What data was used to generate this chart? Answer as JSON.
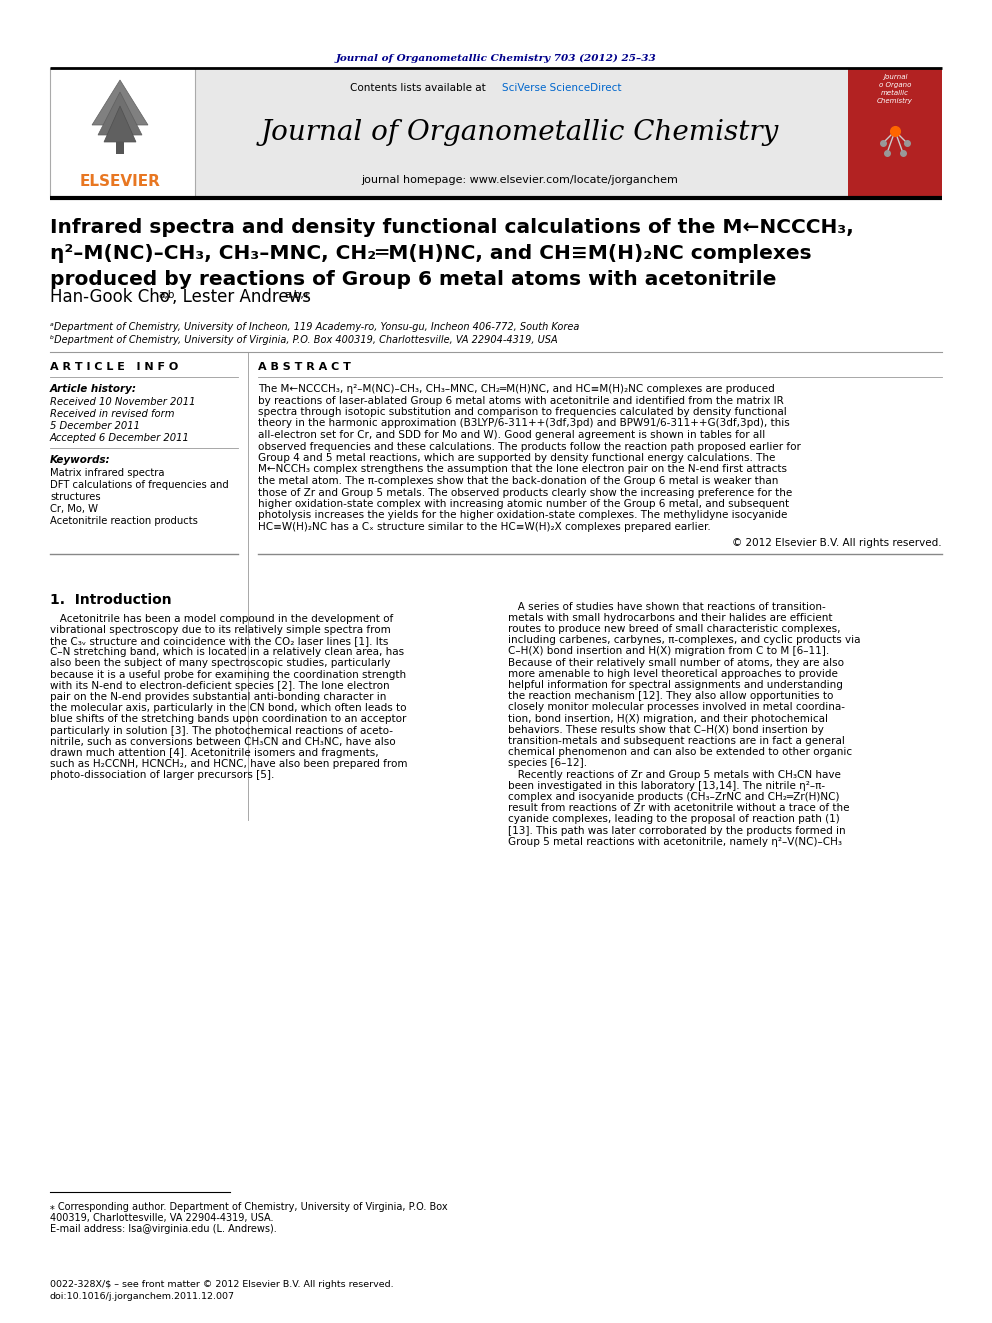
{
  "journal_line": "Journal of Organometallic Chemistry 703 (2012) 25–33",
  "contents_line": "Contents lists available at ",
  "sciverse_text": "SciVerse ScienceDirect",
  "journal_title": "Journal of Organometallic Chemistry",
  "homepage_line": "journal homepage: www.elsevier.com/locate/jorganchem",
  "elsevier_text": "ELSEVIER",
  "paper_title_line1": "Infrared spectra and density functional calculations of the M←NCCCH₃,",
  "paper_title_line2": "η²–M(NC)–CH₃, CH₃–MNC, CH₂═M(H)NC, and CH≡M(H)₂NC complexes",
  "paper_title_line3": "produced by reactions of Group 6 metal atoms with acetonitrile",
  "author_text": "Han-Gook Cho",
  "author_super1": "a,b",
  "author_text2": ", Lester Andrews",
  "author_super2": "a,b,⁎",
  "affil_a": "ᵃDepartment of Chemistry, University of Incheon, 119 Academy-ro, Yonsu-gu, Incheon 406-772, South Korea",
  "affil_b": "ᵇDepartment of Chemistry, University of Virginia, P.O. Box 400319, Charlottesville, VA 22904-4319, USA",
  "article_info_header": "ARTICLE INFO",
  "article_history_header": "Article history:",
  "received": "Received 10 November 2011",
  "revised": "Received in revised form",
  "revised2": "5 December 2011",
  "accepted": "Accepted 6 December 2011",
  "keywords_header": "Keywords:",
  "kw1": "Matrix infrared spectra",
  "kw2": "DFT calculations of frequencies and",
  "kw3": "structures",
  "kw4": "Cr, Mo, W",
  "kw5": "Acetonitrile reaction products",
  "abstract_header": "ABSTRACT",
  "abstract_lines": [
    "The M←NCCCH₃, η²–M(NC)–CH₃, CH₃–MNC, CH₂═M(H)NC, and HC≡M(H)₂NC complexes are produced",
    "by reactions of laser-ablated Group 6 metal atoms with acetonitrile and identified from the matrix IR",
    "spectra through isotopic substitution and comparison to frequencies calculated by density functional",
    "theory in the harmonic approximation (B3LYP/6-311++(3df,3pd) and BPW91/6-311++G(3df,3pd), this",
    "all-electron set for Cr, and SDD for Mo and W). Good general agreement is shown in tables for all",
    "observed frequencies and these calculations. The products follow the reaction path proposed earlier for",
    "Group 4 and 5 metal reactions, which are supported by density functional energy calculations. The",
    "M←NCCH₃ complex strengthens the assumption that the lone electron pair on the N-end first attracts",
    "the metal atom. The π-complexes show that the back-donation of the Group 6 metal is weaker than",
    "those of Zr and Group 5 metals. The observed products clearly show the increasing preference for the",
    "higher oxidation-state complex with increasing atomic number of the Group 6 metal, and subsequent",
    "photolysis increases the yields for the higher oxidation-state complexes. The methylidyne isocyanide",
    "HC≡W(H)₂NC has a Cₓ structure similar to the HC≡W(H)₂X complexes prepared earlier."
  ],
  "copyright": "© 2012 Elsevier B.V. All rights reserved.",
  "intro_header": "1.  Introduction",
  "intro_col1_lines": [
    "   Acetonitrile has been a model compound in the development of",
    "vibrational spectroscopy due to its relatively simple spectra from",
    "the C₃ᵥ structure and coincidence with the CO₂ laser lines [1]. Its",
    "C–N stretching band, which is located in a relatively clean area, has",
    "also been the subject of many spectroscopic studies, particularly",
    "because it is a useful probe for examining the coordination strength",
    "with its N-end to electron-deficient species [2]. The lone electron",
    "pair on the N-end provides substantial anti-bonding character in",
    "the molecular axis, particularly in the CN bond, which often leads to",
    "blue shifts of the stretching bands upon coordination to an acceptor",
    "particularly in solution [3]. The photochemical reactions of aceto-",
    "nitrile, such as conversions between CH₃CN and CH₃NC, have also",
    "drawn much attention [4]. Acetonitrile isomers and fragments,",
    "such as H₂CCNH, HCNCH₂, and HCNC, have also been prepared from",
    "photo-dissociation of larger precursors [5]."
  ],
  "intro_col2_lines": [
    "   A series of studies have shown that reactions of transition-",
    "metals with small hydrocarbons and their halides are efficient",
    "routes to produce new breed of small characteristic complexes,",
    "including carbenes, carbynes, π-complexes, and cyclic products via",
    "C–H(X) bond insertion and H(X) migration from C to M [6–11].",
    "Because of their relatively small number of atoms, they are also",
    "more amenable to high level theoretical approaches to provide",
    "helpful information for spectral assignments and understanding",
    "the reaction mechanism [12]. They also allow opportunities to",
    "closely monitor molecular processes involved in metal coordina-",
    "tion, bond insertion, H(X) migration, and their photochemical",
    "behaviors. These results show that C–H(X) bond insertion by",
    "transition-metals and subsequent reactions are in fact a general",
    "chemical phenomenon and can also be extended to other organic",
    "species [6–12].",
    "   Recently reactions of Zr and Group 5 metals with CH₃CN have",
    "been investigated in this laboratory [13,14]. The nitrile η²–π-",
    "complex and isocyanide products (CH₃–ZrNC and CH₂═Zr(H)NC)",
    "result from reactions of Zr with acetonitrile without a trace of the",
    "cyanide complexes, leading to the proposal of reaction path (1)",
    "[13]. This path was later corroborated by the products formed in",
    "Group 5 metal reactions with acetonitrile, namely η²–V(NC)–CH₃"
  ],
  "footnote_line1": "⁎ Corresponding author. Department of Chemistry, University of Virginia, P.O. Box",
  "footnote_line2": "400319, Charlottesville, VA 22904-4319, USA.",
  "footnote_email": "E-mail address: lsa@virginia.edu (L. Andrews).",
  "issn_line": "0022-328X/$ – see front matter © 2012 Elsevier B.V. All rights reserved.",
  "doi_line": "doi:10.1016/j.jorganchem.2011.12.007",
  "bg_color": "#ffffff",
  "navy_color": "#00008b",
  "blue_link": "#0066cc",
  "elsevier_orange": "#e87722",
  "journal_cover_red": "#b22222",
  "text_color": "#000000",
  "gray_bg": "#e8e8e8"
}
